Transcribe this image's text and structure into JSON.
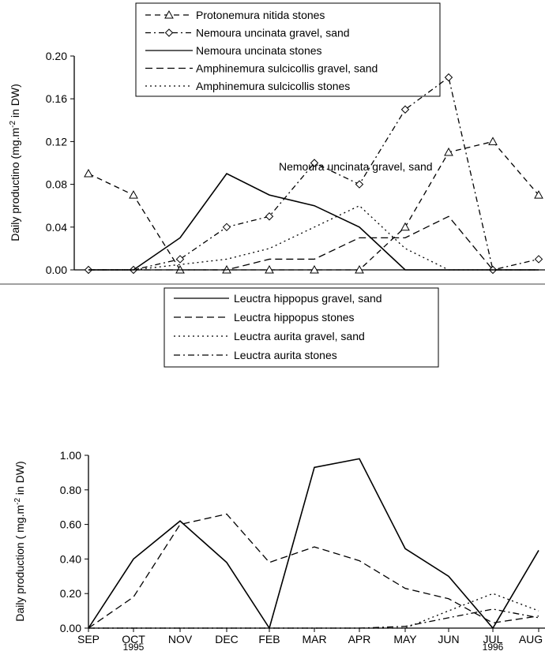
{
  "chart_data": [
    {
      "type": "line",
      "title": "",
      "ylabel": "Daily productino (mg.m-2 in DW)",
      "ylabel_prefix": "Daily productino (mg.m",
      "ylabel_sup": "-2",
      "ylabel_suffix": " in DW)",
      "ylim": [
        0,
        0.2
      ],
      "yticks": [
        "0.00",
        "0.04",
        "0.08",
        "0.12",
        "0.16",
        "0.20"
      ],
      "grid": false,
      "legend_position": "top-center",
      "annotation": "Nemoura uncinata gravel, sand",
      "series": [
        {
          "name": "Protonemura nitida stones",
          "style": "dash-triangle",
          "values": [
            0.09,
            0.07,
            0.0,
            0.0,
            0.0,
            0.0,
            0.0,
            0.04,
            0.11,
            0.12,
            0.07
          ]
        },
        {
          "name": "Nemoura uncinata gravel, sand",
          "style": "dashdot-diamond",
          "values": [
            0.0,
            0.0,
            0.01,
            0.04,
            0.05,
            0.1,
            0.08,
            0.15,
            0.18,
            0.0,
            0.01
          ]
        },
        {
          "name": "Nemoura uncinata stones",
          "style": "solid",
          "values": [
            0.0,
            0.0,
            0.03,
            0.09,
            0.07,
            0.06,
            0.04,
            0.0,
            0.0,
            0.0,
            0.0
          ]
        },
        {
          "name": "Amphinemura sulcicollis gravel, sand",
          "style": "dash",
          "values": [
            0.0,
            0.0,
            0.0,
            0.0,
            0.01,
            0.01,
            0.03,
            0.03,
            0.05,
            0.0,
            0.0
          ]
        },
        {
          "name": "Amphinemura sulcicollis stones",
          "style": "dot",
          "values": [
            0.0,
            0.0,
            0.005,
            0.01,
            0.02,
            0.04,
            0.06,
            0.02,
            0.0,
            0.0,
            0.0
          ]
        }
      ]
    },
    {
      "type": "line",
      "title": "",
      "ylabel": "Daily production ( mg.m-2 in DW)",
      "ylabel_prefix": "Daily production ( mg.m",
      "ylabel_sup": "-2",
      "ylabel_suffix": " in DW)",
      "ylim": [
        0,
        1.0
      ],
      "yticks": [
        "0.00",
        "0.20",
        "0.40",
        "0.60",
        "0.80",
        "1.00"
      ],
      "grid": false,
      "legend_position": "top-center",
      "categories": [
        "SEP",
        "OCT",
        "NOV",
        "DEC",
        "FEB",
        "MAR",
        "APR",
        "MAY",
        "JUN",
        "JUL",
        "AUG"
      ],
      "year_labels": [
        {
          "category": "OCT",
          "label": "1995"
        },
        {
          "category": "JUL",
          "label": "1996"
        }
      ],
      "series": [
        {
          "name": "Leuctra hippopus gravel, sand",
          "style": "solid",
          "values": [
            0.0,
            0.4,
            0.62,
            0.38,
            0.0,
            0.93,
            0.98,
            0.46,
            0.3,
            0.0,
            0.45
          ]
        },
        {
          "name": "Leuctra hippopus stones",
          "style": "dash",
          "values": [
            0.0,
            0.18,
            0.6,
            0.66,
            0.38,
            0.47,
            0.39,
            0.23,
            0.17,
            0.03,
            0.07
          ]
        },
        {
          "name": "Leuctra aurita gravel, sand",
          "style": "dot",
          "values": [
            0.0,
            0.0,
            0.0,
            0.0,
            0.0,
            0.0,
            0.0,
            0.0,
            0.1,
            0.2,
            0.1
          ]
        },
        {
          "name": "Leuctra aurita stones",
          "style": "dashdot",
          "values": [
            0.0,
            0.0,
            0.0,
            0.0,
            0.0,
            0.0,
            0.0,
            0.01,
            0.06,
            0.11,
            0.06
          ]
        }
      ]
    }
  ]
}
